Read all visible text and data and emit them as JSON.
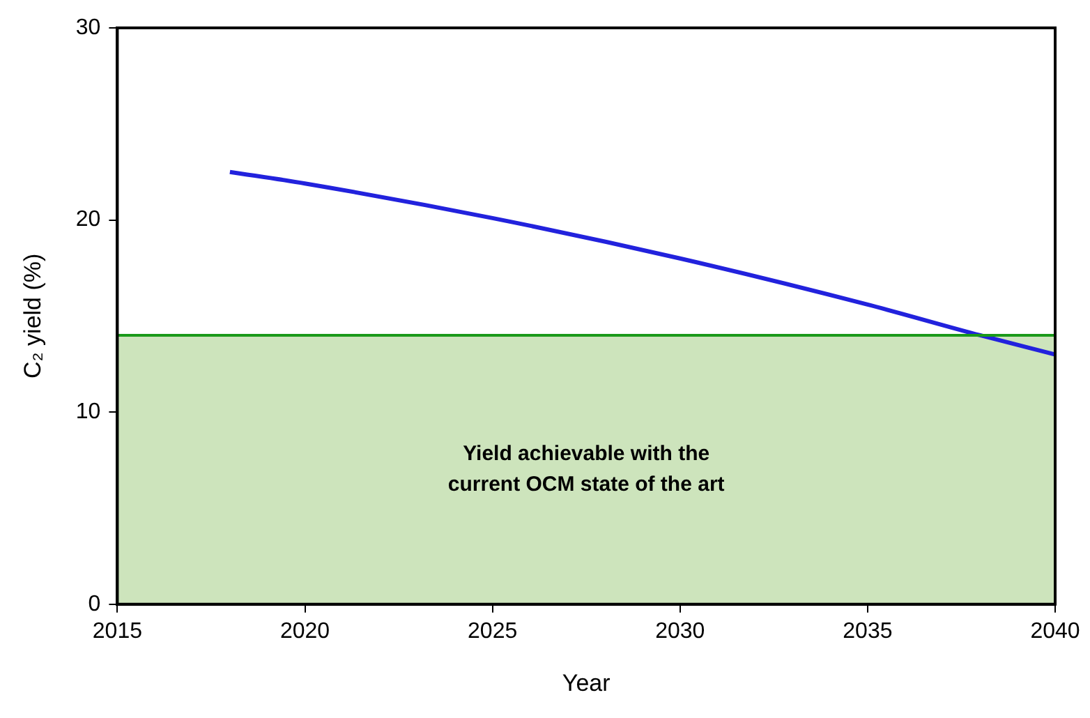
{
  "chart_data": {
    "type": "line",
    "xlabel": "Year",
    "ylabel": "C₂ yield (%)",
    "xlim": [
      2015,
      2040
    ],
    "xticks": [
      2015,
      2020,
      2025,
      2030,
      2035,
      2040
    ],
    "ylim": [
      0,
      30
    ],
    "yticks": [
      0,
      10,
      20,
      30
    ],
    "grid": false,
    "legend": false,
    "series": [
      {
        "color": "#2222dd",
        "x": [
          2018,
          2020,
          2025,
          2030,
          2035,
          2038,
          2040
        ],
        "values": [
          22.5,
          21.9,
          20.1,
          18.0,
          15.6,
          14.0,
          13.0
        ]
      }
    ],
    "bands": [
      {
        "axis": "y",
        "from": 0,
        "to": 14,
        "label": "Yield achievable with the\ncurrent OCM state of the art",
        "color": "#c4dfb0"
      }
    ],
    "ref_lines": [
      {
        "axis": "y",
        "value": 14,
        "color": "#1a9a1a"
      }
    ]
  }
}
